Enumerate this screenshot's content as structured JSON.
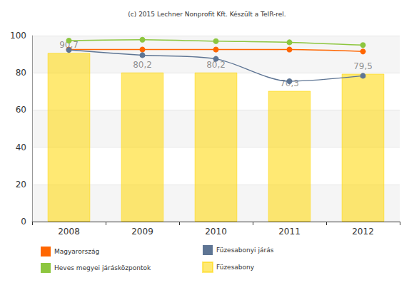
{
  "chart_data": {
    "type": "bar",
    "title": "(c) 2015 Lechner Nonprofit Kft. Készült a TeIR-rel.",
    "categories": [
      "2008",
      "2009",
      "2010",
      "2011",
      "2012"
    ],
    "ylim": [
      0,
      100
    ],
    "yticks": [
      0,
      20,
      40,
      60,
      80,
      100
    ],
    "grid": true,
    "legend": "bottom",
    "series": [
      {
        "name": "Magyarország",
        "type": "line",
        "color": "#ff6600",
        "marker": "circle",
        "line_style": "solid",
        "values": [
          92.5,
          92.5,
          92.5,
          92.5,
          91.5
        ]
      },
      {
        "name": "Füzesabonyi járás",
        "type": "line",
        "color": "#5e7594",
        "marker": "circle",
        "line_style": "solid",
        "values": [
          92.3,
          89.5,
          87.5,
          75.5,
          78.4
        ]
      },
      {
        "name": "Heves megyei járásközpontok",
        "type": "line",
        "color": "#8dc63f",
        "marker": "circle",
        "line_style": "solid",
        "values": [
          97.3,
          97.8,
          97.0,
          96.4,
          94.9
        ]
      },
      {
        "name": "Füzesabony",
        "type": "bar",
        "color": "#ffd700",
        "data_labels": true,
        "values": [
          90.7,
          80.2,
          80.2,
          70.3,
          79.5
        ],
        "value_labels": [
          "90,7",
          "80,2",
          "80,2",
          "70,3",
          "79,5"
        ]
      }
    ]
  }
}
